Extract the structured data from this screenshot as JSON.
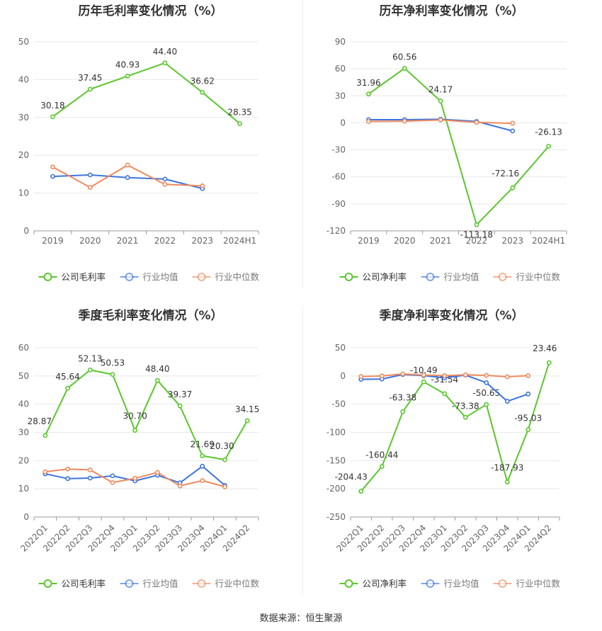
{
  "source_text": "数据来源：恒生聚源",
  "colors": {
    "company": "#5ac72d",
    "industry_avg": "#3d74e0",
    "industry_median": "#f08a5d"
  },
  "chart_data": [
    {
      "id": "annual-gross",
      "type": "line",
      "title": "历年毛利率变化情况（%）",
      "categories": [
        "2019",
        "2020",
        "2021",
        "2022",
        "2023",
        "2024H1"
      ],
      "ylim": [
        0,
        50
      ],
      "yticks": [
        0,
        10,
        20,
        30,
        40,
        50
      ],
      "series": [
        {
          "name": "公司毛利率",
          "color": "#5ac72d",
          "values": [
            30.18,
            37.45,
            40.93,
            44.4,
            36.62,
            28.35
          ],
          "labels": true
        },
        {
          "name": "行业均值",
          "color": "#3d74e0",
          "values": [
            14.4,
            14.8,
            14.1,
            13.7,
            11.2,
            null
          ],
          "labels": false
        },
        {
          "name": "行业中位数",
          "color": "#f08a5d",
          "values": [
            16.9,
            11.5,
            17.4,
            12.3,
            11.9,
            null
          ],
          "labels": false
        }
      ],
      "legend": "bottom"
    },
    {
      "id": "annual-net",
      "type": "line",
      "title": "历年净利率变化情况（%）",
      "categories": [
        "2019",
        "2020",
        "2021",
        "2022",
        "2023",
        "2024H1"
      ],
      "ylim": [
        -120,
        90
      ],
      "yticks": [
        -120,
        -90,
        -60,
        -30,
        0,
        30,
        60,
        90
      ],
      "series": [
        {
          "name": "公司净利率",
          "color": "#5ac72d",
          "values": [
            31.96,
            60.56,
            24.17,
            -113.18,
            -72.16,
            -26.13
          ],
          "labels": true
        },
        {
          "name": "行业均值",
          "color": "#3d74e0",
          "values": [
            3.5,
            3.5,
            4.0,
            1.5,
            -9.0,
            null
          ],
          "labels": false
        },
        {
          "name": "行业中位数",
          "color": "#f08a5d",
          "values": [
            1.5,
            1.8,
            3.2,
            0.5,
            -0.5,
            null
          ],
          "labels": false
        }
      ],
      "legend": "bottom"
    },
    {
      "id": "quarterly-gross",
      "type": "line",
      "title": "季度毛利率变化情况（%）",
      "categories": [
        "2022Q1",
        "2022Q2",
        "2022Q3",
        "2022Q4",
        "2023Q1",
        "2023Q2",
        "2023Q3",
        "2023Q4",
        "2024Q1",
        "2024Q2"
      ],
      "ylim": [
        0,
        60
      ],
      "yticks": [
        0,
        10,
        20,
        30,
        40,
        50,
        60
      ],
      "series": [
        {
          "name": "公司毛利率",
          "color": "#5ac72d",
          "values": [
            28.87,
            45.64,
            52.13,
            50.53,
            30.7,
            48.4,
            39.37,
            21.69,
            20.3,
            34.15
          ],
          "labels": true
        },
        {
          "name": "行业均值",
          "color": "#3d74e0",
          "values": [
            15.3,
            13.6,
            13.8,
            14.6,
            12.8,
            14.8,
            12.1,
            18.0,
            11.2,
            null
          ],
          "labels": false
        },
        {
          "name": "行业中位数",
          "color": "#f08a5d",
          "values": [
            16.0,
            17.0,
            16.7,
            12.2,
            13.7,
            15.8,
            11.0,
            12.9,
            10.7,
            null
          ],
          "labels": false
        }
      ],
      "legend": "bottom"
    },
    {
      "id": "quarterly-net",
      "type": "line",
      "title": "季度净利率变化情况（%）",
      "categories": [
        "2022Q1",
        "2022Q2",
        "2022Q3",
        "2022Q4",
        "2023Q1",
        "2023Q2",
        "2023Q3",
        "2023Q4",
        "2024Q1",
        "2024Q2"
      ],
      "ylim": [
        -250,
        50
      ],
      "yticks": [
        -250,
        -200,
        -150,
        -100,
        -50,
        0,
        50
      ],
      "series": [
        {
          "name": "公司净利率",
          "color": "#5ac72d",
          "values": [
            -204.43,
            -160.44,
            -63.38,
            -10.49,
            -31.54,
            -73.38,
            -50.65,
            -187.93,
            -95.03,
            23.46
          ],
          "labels": true
        },
        {
          "name": "行业均值",
          "color": "#3d74e0",
          "values": [
            -6.0,
            -5.5,
            2.5,
            0.5,
            -3.5,
            1.5,
            -12.0,
            -45.0,
            -32.0,
            null
          ],
          "labels": false
        },
        {
          "name": "行业中位数",
          "color": "#f08a5d",
          "values": [
            -1.0,
            0.0,
            3.5,
            1.5,
            0.5,
            2.0,
            1.0,
            -1.5,
            0.5,
            null
          ],
          "labels": false
        }
      ],
      "legend": "bottom"
    }
  ]
}
